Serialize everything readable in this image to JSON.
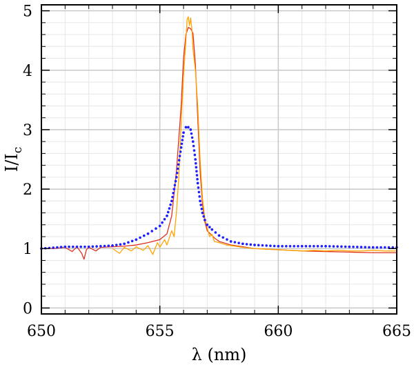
{
  "chart_data": {
    "type": "line",
    "xlabel": "λ (nm)",
    "ylabel": {
      "main": "I/I",
      "sub": "c"
    },
    "xlim": [
      650,
      665
    ],
    "ylim": [
      -0.1,
      5.1
    ],
    "xticks": [
      {
        "value": 650,
        "label": "650"
      },
      {
        "value": 655,
        "label": "655"
      },
      {
        "value": 660,
        "label": "660"
      },
      {
        "value": 665,
        "label": "665"
      }
    ],
    "yticks": [
      {
        "value": 0,
        "label": "0"
      },
      {
        "value": 1,
        "label": "1"
      },
      {
        "value": 2,
        "label": "2"
      },
      {
        "value": 3,
        "label": "3"
      },
      {
        "value": 4,
        "label": "4"
      },
      {
        "value": 5,
        "label": "5"
      }
    ],
    "x_minor_step": 1,
    "y_minor_step": 0.2,
    "grid": true,
    "colors": {
      "major_grid": "#c8c8c8",
      "minor_grid": "#e6e6e6"
    },
    "series": [
      {
        "id": "red",
        "color": "#e03020",
        "style": "solid",
        "x": [
          650.0,
          650.5,
          651.0,
          651.3,
          651.5,
          651.7,
          651.8,
          651.9,
          652.0,
          652.3,
          652.5,
          653.0,
          653.5,
          654.0,
          654.5,
          655.0,
          655.3,
          655.5,
          655.7,
          655.9,
          656.0,
          656.1,
          656.2,
          656.3,
          656.4,
          656.5,
          656.6,
          656.7,
          656.8,
          656.9,
          657.0,
          657.3,
          657.5,
          658.0,
          658.5,
          659.0,
          660.0,
          661.0,
          662.0,
          663.0,
          664.0,
          665.0
        ],
        "y": [
          1.0,
          1.0,
          1.02,
          0.95,
          1.03,
          0.92,
          0.82,
          0.98,
          1.02,
          0.96,
          1.02,
          1.03,
          1.04,
          1.06,
          1.1,
          1.15,
          1.25,
          1.55,
          2.3,
          3.4,
          4.2,
          4.6,
          4.72,
          4.7,
          4.62,
          4.1,
          3.2,
          2.3,
          1.75,
          1.45,
          1.3,
          1.18,
          1.12,
          1.06,
          1.03,
          1.0,
          0.98,
          0.96,
          0.95,
          0.94,
          0.93,
          0.93
        ]
      },
      {
        "id": "orange",
        "color": "#ffa500",
        "style": "solid",
        "x": [
          653.0,
          653.3,
          653.5,
          653.8,
          654.0,
          654.3,
          654.5,
          654.7,
          654.9,
          655.0,
          655.2,
          655.3,
          655.5,
          655.6,
          655.7,
          655.8,
          655.9,
          656.0,
          656.1,
          656.15,
          656.2,
          656.25,
          656.3,
          656.35,
          656.4,
          656.5,
          656.6,
          656.7,
          656.8,
          656.9,
          657.0,
          657.1,
          657.2,
          657.3,
          657.5,
          657.8,
          658.0,
          658.5,
          659.0,
          659.5,
          660.0,
          660.5,
          661.0,
          661.5,
          662.0,
          662.5,
          663.0,
          663.5,
          664.0,
          664.5,
          665.0
        ],
        "y": [
          1.0,
          0.92,
          1.02,
          0.96,
          1.03,
          0.97,
          1.05,
          0.9,
          1.1,
          1.02,
          1.15,
          1.06,
          1.3,
          1.2,
          1.6,
          2.2,
          3.1,
          3.9,
          4.5,
          4.85,
          4.9,
          4.75,
          4.88,
          4.7,
          4.35,
          4.0,
          3.4,
          2.5,
          1.85,
          1.5,
          1.35,
          1.2,
          1.24,
          1.12,
          1.1,
          1.06,
          1.05,
          1.02,
          1.0,
          0.99,
          0.98,
          0.97,
          0.96,
          0.97,
          0.96,
          0.97,
          0.96,
          0.96,
          0.97,
          0.96,
          0.96
        ]
      },
      {
        "id": "blue",
        "color": "#2020ff",
        "style": "dotted",
        "x": [
          650.0,
          651.0,
          652.0,
          653.0,
          653.5,
          654.0,
          654.5,
          655.0,
          655.3,
          655.5,
          655.7,
          655.9,
          656.0,
          656.1,
          656.2,
          656.3,
          656.4,
          656.5,
          656.6,
          656.7,
          656.8,
          656.9,
          657.0,
          657.2,
          657.5,
          658.0,
          658.5,
          659.0,
          660.0,
          661.0,
          662.0,
          663.0,
          664.0,
          665.0
        ],
        "y": [
          1.0,
          1.03,
          1.03,
          1.05,
          1.08,
          1.15,
          1.25,
          1.38,
          1.55,
          1.8,
          2.2,
          2.7,
          2.95,
          3.04,
          3.04,
          3.0,
          2.8,
          2.5,
          2.1,
          1.8,
          1.6,
          1.48,
          1.4,
          1.32,
          1.22,
          1.12,
          1.08,
          1.06,
          1.04,
          1.04,
          1.04,
          1.03,
          1.02,
          1.02
        ]
      }
    ]
  }
}
